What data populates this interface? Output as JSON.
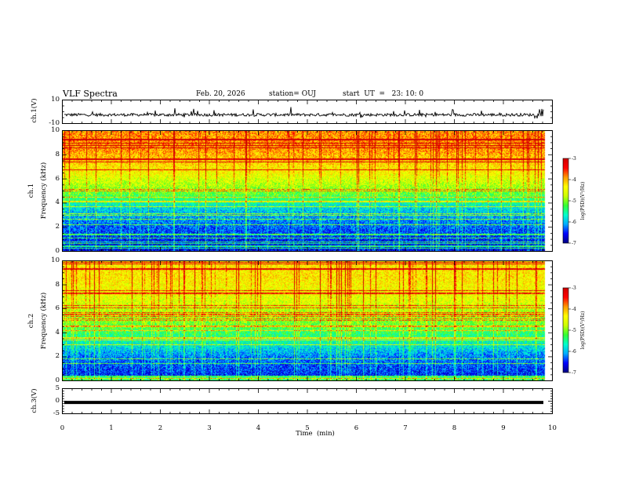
{
  "header": {
    "title": "VLF Spectra",
    "date": "Feb. 20, 2026",
    "station": "station= OUJ",
    "start": "start  UT  =   23: 10: 0"
  },
  "colors": {
    "bg": "#ffffff",
    "axis": "#000000",
    "colormap": [
      "#000080",
      "#0000ff",
      "#00aaff",
      "#00ffcc",
      "#33ff33",
      "#ccff00",
      "#ffff00",
      "#ff9900",
      "#ff0000",
      "#cc0000"
    ]
  },
  "chart_data": [
    {
      "type": "line",
      "panel": "ch1-waveform",
      "ylabel": "ch.1(V)",
      "ylim": [
        -10,
        10
      ],
      "yticks": [
        "10",
        "-10"
      ],
      "xlim": [
        0,
        10
      ],
      "baseline_V": -2.5
    },
    {
      "type": "heatmap",
      "panel": "ch1-spectrogram",
      "ylabel_line1": "ch.1",
      "ylabel_line2": "Frequency (kHz)",
      "ylim": [
        0,
        10
      ],
      "yticks": [
        "0",
        "2",
        "4",
        "6",
        "8",
        "10"
      ],
      "xlim": [
        0,
        10
      ],
      "colorbar": {
        "label": "log(PSD)(V²/Hz)",
        "range": [
          -7,
          -3
        ],
        "ticks": [
          "-3",
          "-4",
          "-5",
          "-6",
          "-7"
        ]
      },
      "profile": [
        {
          "freq_kHz": 0.5,
          "level": -6.6
        },
        {
          "freq_kHz": 2.0,
          "level": -6.3
        },
        {
          "freq_kHz": 3.5,
          "level": -5.9
        },
        {
          "freq_kHz": 5.0,
          "level": -5.0
        },
        {
          "freq_kHz": 6.5,
          "level": -4.4
        },
        {
          "freq_kHz": 8.5,
          "level": -3.9
        }
      ]
    },
    {
      "type": "heatmap",
      "panel": "ch2-spectrogram",
      "ylabel_line1": "ch.2",
      "ylabel_line2": "Frequency (kHz)",
      "ylim": [
        0,
        10
      ],
      "yticks": [
        "0",
        "2",
        "4",
        "6",
        "8",
        "10"
      ],
      "xlim": [
        0,
        10
      ],
      "colorbar": {
        "label": "log(PSD)(V²/Hz)",
        "range": [
          -7,
          -3
        ],
        "ticks": [
          "-3",
          "-4",
          "-5",
          "-6",
          "-7"
        ]
      },
      "profile": [
        {
          "freq_kHz": 0.5,
          "level": -6.5
        },
        {
          "freq_kHz": 2.0,
          "level": -6.2
        },
        {
          "freq_kHz": 3.5,
          "level": -5.5
        },
        {
          "freq_kHz": 5.0,
          "level": -5.0
        },
        {
          "freq_kHz": 6.5,
          "level": -4.6
        },
        {
          "freq_kHz": 8.5,
          "level": -4.3
        }
      ]
    },
    {
      "type": "line",
      "panel": "ch3-waveform",
      "ylabel": "ch.3(V)",
      "ylim": [
        -5,
        5
      ],
      "yticks": [
        "5",
        "0",
        "-5"
      ],
      "xlim": [
        0,
        10
      ],
      "constant_V": -0.5
    }
  ],
  "xaxis": {
    "label": "Time  (min)",
    "ticks": [
      "0",
      "1",
      "2",
      "3",
      "4",
      "5",
      "6",
      "7",
      "8",
      "9",
      "10"
    ]
  }
}
